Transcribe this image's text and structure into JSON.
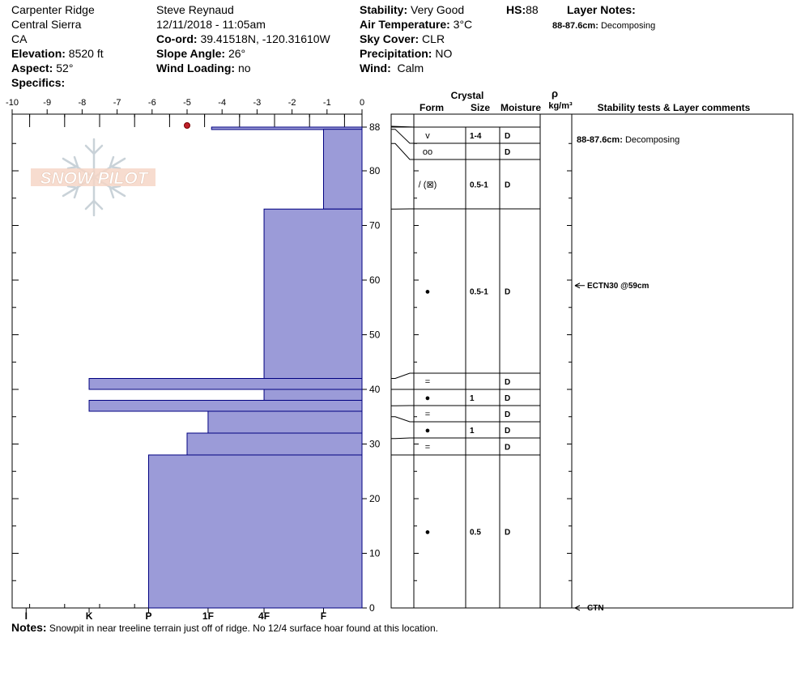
{
  "header": {
    "location": "Carpenter Ridge",
    "range": "Central Sierra",
    "state": "CA",
    "elevation_label": "Elevation:",
    "elevation_value": "8520 ft",
    "aspect_label": "Aspect:",
    "aspect_value": "52°",
    "specifics_label": "Specifics:",
    "observer": "Steve Reynaud",
    "datetime": "12/11/2018 - 11:05am",
    "coord_label": "Co-ord:",
    "coord_value": "39.41518N, -120.31610W",
    "slope_label": "Slope Angle:",
    "slope_value": "26°",
    "windload_label": "Wind Loading:",
    "windload_value": "no",
    "stability_label": "Stability:",
    "stability_value": "Very Good",
    "airtemp_label": "Air Temperature:",
    "airtemp_value": "3°C",
    "sky_label": "Sky Cover:",
    "sky_value": "CLR",
    "precip_label": "Precipitation:",
    "precip_value": "NO",
    "wind_label": "Wind:",
    "wind_value": "Calm",
    "hs_label": "HS:",
    "hs_value": "88",
    "layer_notes_label": "Layer Notes:",
    "layer_note_range": "88-87.6cm:",
    "layer_note_text": "Decomposing"
  },
  "notes_label": "Notes:",
  "notes_text": "Snowpit in near treeline terrain just off of ridge.  No 12/4 surface hoar found at this location.",
  "watermark": "SNOW PILOT",
  "table_headers": {
    "crystal": "Crystal",
    "form": "Form",
    "size": "Size",
    "moisture": "Moisture",
    "rho": "ρ",
    "density_unit": "kg/m³",
    "comments": "Stability tests & Layer comments"
  },
  "colors": {
    "hardness_fill": "#9b9bd8",
    "hardness_stroke": "#000080",
    "temp_point": "#c0202a",
    "watermark": "#f2c9b4"
  },
  "chart_data": {
    "type": "snow-profile",
    "temperature_axis": {
      "ticks": [
        "-10",
        "-9",
        "-8",
        "-7",
        "-6",
        "-5",
        "-4",
        "-3",
        "-2",
        "-1",
        "0"
      ],
      "range": [
        -10,
        0
      ]
    },
    "height_axis": {
      "ticks": [
        "0",
        "10",
        "20",
        "30",
        "40",
        "50",
        "60",
        "70",
        "80",
        "88"
      ],
      "range": [
        0,
        88
      ]
    },
    "hardness_axis": {
      "ticks": [
        "I",
        "K",
        "P",
        "1F",
        "4F",
        "F"
      ]
    },
    "temperature_points": [
      {
        "depth": 88,
        "temp": -5
      }
    ],
    "hardness_layers": [
      {
        "top": 88,
        "bottom": 87.6,
        "hardness": 4.3
      },
      {
        "top": 87.6,
        "bottom": 73,
        "hardness": 1.1
      },
      {
        "top": 73,
        "bottom": 42,
        "hardness": 2.8
      },
      {
        "top": 42,
        "bottom": 40,
        "hardness": 7.8
      },
      {
        "top": 40,
        "bottom": 38,
        "hardness": 2.8
      },
      {
        "top": 38,
        "bottom": 36,
        "hardness": 7.8
      },
      {
        "top": 36,
        "bottom": 32,
        "hardness": 4.4
      },
      {
        "top": 32,
        "bottom": 28,
        "hardness": 5.0
      },
      {
        "top": 28,
        "bottom": 0,
        "hardness": 6.1
      }
    ],
    "layers": [
      {
        "top": 88,
        "bottom": 87.6,
        "form": "v",
        "size": "1-4",
        "moisture": "D"
      },
      {
        "top": 87.6,
        "bottom": 85,
        "form": "oo",
        "size": "",
        "moisture": "D"
      },
      {
        "top": 85,
        "bottom": 73,
        "form": "/ (⊠)",
        "size": "0.5-1",
        "moisture": "D"
      },
      {
        "top": 73,
        "bottom": 42,
        "form": "●",
        "size": "0.5-1",
        "moisture": "D"
      },
      {
        "top": 42,
        "bottom": 40,
        "form": "=",
        "size": "",
        "moisture": "D"
      },
      {
        "top": 40,
        "bottom": 37,
        "form": "●",
        "size": "1",
        "moisture": "D"
      },
      {
        "top": 37,
        "bottom": 35,
        "form": "=",
        "size": "",
        "moisture": "D"
      },
      {
        "top": 35,
        "bottom": 31,
        "form": "●",
        "size": "1",
        "moisture": "D"
      },
      {
        "top": 31,
        "bottom": 28,
        "form": "=",
        "size": "",
        "moisture": "D"
      },
      {
        "top": 28,
        "bottom": 0,
        "form": "●",
        "size": "0.5",
        "moisture": "D"
      }
    ],
    "stability_tests": [
      {
        "depth": 59,
        "label": "ECTN30 @59cm"
      },
      {
        "depth": 0,
        "label": "CTN"
      }
    ],
    "layer_comments": [
      {
        "depth": 88,
        "range": "88-87.6cm:",
        "text": "Decomposing"
      }
    ]
  }
}
